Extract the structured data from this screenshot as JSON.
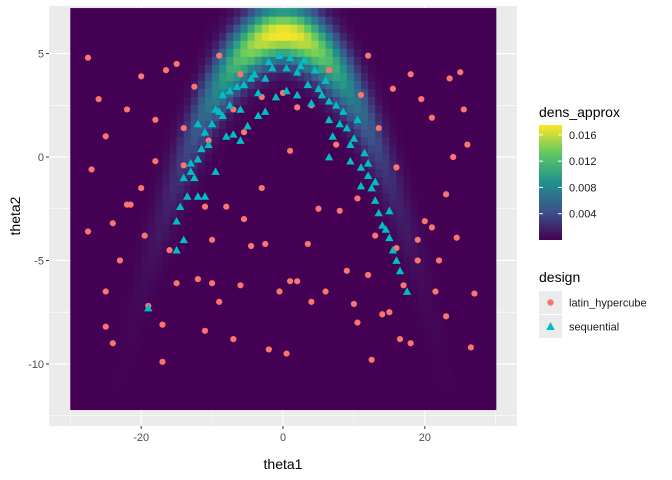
{
  "chart_data": {
    "type": "heatmap",
    "xlabel": "theta1",
    "ylabel": "theta2",
    "xlim": [
      -33,
      33
    ],
    "ylim": [
      -13.0,
      7.3
    ],
    "x_ticks": [
      -20,
      0,
      20
    ],
    "y_ticks": [
      -10,
      -5,
      0,
      5
    ],
    "grid": true,
    "heatmap": {
      "legend_title": "dens_approx",
      "x_range": [
        -30,
        30
      ],
      "y_range": [
        -12.2,
        7.2
      ],
      "max_density": 0.0175,
      "legend_breaks": [
        0.004,
        0.008,
        0.012,
        0.016
      ],
      "colorbar_labels": [
        "0.004",
        "0.008",
        "0.012",
        "0.016"
      ],
      "colors": [
        "#440154",
        "#3b528b",
        "#21908c",
        "#5dc863",
        "#fde725"
      ],
      "density_model": "banana: peak density along the curve theta2 = 3 - 0.03*(theta1^2 - 100), highest near theta1 = 0"
    },
    "legend": {
      "title": "design",
      "position": "right",
      "entries": [
        {
          "label": "latin_hypercube",
          "color": "#f8766d",
          "shape": "circle"
        },
        {
          "label": "sequential",
          "color": "#00bfc4",
          "shape": "triangle"
        }
      ]
    },
    "series": [
      {
        "name": "latin_hypercube",
        "color": "#f8766d",
        "shape": "circle",
        "points": [
          [
            -27.5,
            4.8
          ],
          [
            -26,
            2.8
          ],
          [
            -25,
            1.0
          ],
          [
            -27,
            -0.6
          ],
          [
            -27.5,
            -3.6
          ],
          [
            -24,
            -3.2
          ],
          [
            -25,
            -6.5
          ],
          [
            -23,
            -5.0
          ],
          [
            -25,
            -8.2
          ],
          [
            -24,
            -9.0
          ],
          [
            -22,
            2.3
          ],
          [
            -22,
            -2.3
          ],
          [
            -21.5,
            -2.3
          ],
          [
            -20,
            3.9
          ],
          [
            -19.5,
            -3.8
          ],
          [
            -18,
            1.8
          ],
          [
            -18,
            -0.2
          ],
          [
            -19,
            -7.2
          ],
          [
            -17,
            -9.9
          ],
          [
            -17,
            -8.1
          ],
          [
            -15,
            4.5
          ],
          [
            -14,
            1.4
          ],
          [
            -14,
            -0.4
          ],
          [
            -16,
            -4.5
          ],
          [
            -15,
            -6.1
          ],
          [
            -12,
            -5.9
          ],
          [
            -11,
            -8.4
          ],
          [
            -12.5,
            3.4
          ],
          [
            -11,
            -2.4
          ],
          [
            -10,
            -4.0
          ],
          [
            -10,
            -6.1
          ],
          [
            -9,
            4.9
          ],
          [
            -8,
            -2.4
          ],
          [
            -9,
            -7.0
          ],
          [
            -7,
            -8.8
          ],
          [
            -6,
            -6.2
          ],
          [
            -6,
            4.0
          ],
          [
            -5.5,
            1.2
          ],
          [
            -5.5,
            -3.0
          ],
          [
            -4.5,
            -4.3
          ],
          [
            -3,
            2.9
          ],
          [
            -2.5,
            -4.2
          ],
          [
            -2,
            -9.3
          ],
          [
            -0.5,
            -6.5
          ],
          [
            0,
            3.1
          ],
          [
            1,
            0.3
          ],
          [
            1,
            -6.0
          ],
          [
            2,
            -6.0
          ],
          [
            2,
            2.4
          ],
          [
            3.5,
            -4.2
          ],
          [
            4,
            -7.0
          ],
          [
            4,
            2.5
          ],
          [
            5,
            -2.5
          ],
          [
            6,
            -6.5
          ],
          [
            7.5,
            0.6
          ],
          [
            9,
            -5.5
          ],
          [
            10,
            -7.1
          ],
          [
            10.5,
            -2.0
          ],
          [
            11,
            3.0
          ],
          [
            12,
            4.9
          ],
          [
            10.5,
            -8.0
          ],
          [
            12,
            -5.7
          ],
          [
            13,
            -3.8
          ],
          [
            13.5,
            1.4
          ],
          [
            14,
            -7.6
          ],
          [
            15,
            -7.5
          ],
          [
            15.5,
            3.3
          ],
          [
            16,
            -0.5
          ],
          [
            16.5,
            -8.8
          ],
          [
            18,
            4.0
          ],
          [
            19,
            -4.0
          ],
          [
            19.5,
            2.8
          ],
          [
            19,
            -5.0
          ],
          [
            20,
            -3.1
          ],
          [
            21,
            1.9
          ],
          [
            21.5,
            -6.5
          ],
          [
            22,
            -5.0
          ],
          [
            23,
            -1.8
          ],
          [
            23,
            -7.7
          ],
          [
            23.5,
            3.8
          ],
          [
            24,
            0.0
          ],
          [
            25,
            4.1
          ],
          [
            24.5,
            -3.9
          ],
          [
            25.5,
            2.3
          ],
          [
            26,
            0.6
          ],
          [
            27,
            -6.6
          ],
          [
            26.5,
            -9.2
          ],
          [
            21,
            -3.4
          ],
          [
            18,
            -9.0
          ],
          [
            8,
            -2.6
          ],
          [
            -7,
            2.3
          ],
          [
            12.5,
            -9.8
          ],
          [
            -3,
            -1.5
          ],
          [
            -16.5,
            4.2
          ],
          [
            0.5,
            -9.5
          ],
          [
            6.5,
            4.2
          ],
          [
            16,
            -4.4
          ],
          [
            -20,
            -1.5
          ],
          [
            -10.5,
            0.8
          ],
          [
            17,
            -6.2
          ]
        ]
      },
      {
        "name": "sequential",
        "color": "#00bfc4",
        "shape": "triangle",
        "points": [
          [
            -19,
            -7.3
          ],
          [
            -15,
            -4.5
          ],
          [
            -14,
            -4.0
          ],
          [
            -15,
            -3.1
          ],
          [
            -14.5,
            -2.4
          ],
          [
            -13.5,
            -1.9
          ],
          [
            -14,
            -1.0
          ],
          [
            -13,
            -0.7
          ],
          [
            -12,
            -1.9
          ],
          [
            -11,
            -1.9
          ],
          [
            -12,
            -0.1
          ],
          [
            -11.5,
            0.4
          ],
          [
            -10.5,
            0.6
          ],
          [
            -11,
            1.2
          ],
          [
            -10,
            1.6
          ],
          [
            -12,
            1.6
          ],
          [
            -9.5,
            2.3
          ],
          [
            -8.5,
            2.0
          ],
          [
            -8.5,
            3.0
          ],
          [
            -7.5,
            2.5
          ],
          [
            -7.5,
            3.2
          ],
          [
            -6.5,
            3.4
          ],
          [
            -6.0,
            2.3
          ],
          [
            -5.5,
            3.5
          ],
          [
            -4.5,
            3.8
          ],
          [
            -4.0,
            4.0
          ],
          [
            -3.5,
            3.1
          ],
          [
            -2.5,
            3.8
          ],
          [
            -1.5,
            4.3
          ],
          [
            -1.0,
            2.9
          ],
          [
            -0.5,
            4.9
          ],
          [
            0.5,
            4.3
          ],
          [
            0.5,
            3.2
          ],
          [
            1.0,
            4.8
          ],
          [
            2.0,
            4.1
          ],
          [
            2.0,
            3.0
          ],
          [
            3.0,
            4.7
          ],
          [
            3.5,
            3.5
          ],
          [
            4.0,
            2.6
          ],
          [
            4.5,
            4.2
          ],
          [
            5.0,
            3.3
          ],
          [
            5.5,
            3.0
          ],
          [
            6.0,
            3.7
          ],
          [
            6.5,
            2.7
          ],
          [
            6.5,
            1.8
          ],
          [
            7.5,
            2.5
          ],
          [
            8.0,
            1.6
          ],
          [
            9.0,
            1.4
          ],
          [
            9.5,
            0.6
          ],
          [
            10,
            0.9
          ],
          [
            10.5,
            1.8
          ],
          [
            9.5,
            -0.2
          ],
          [
            11,
            -0.5
          ],
          [
            11.5,
            0.2
          ],
          [
            12,
            -0.9
          ],
          [
            12.5,
            -1.5
          ],
          [
            13,
            -2.1
          ],
          [
            13.5,
            -2.7
          ],
          [
            14,
            -3.3
          ],
          [
            15,
            -3.9
          ],
          [
            15.5,
            -4.5
          ],
          [
            16,
            -5.0
          ],
          [
            16.5,
            -5.5
          ],
          [
            17.5,
            -6.5
          ],
          [
            -8.0,
            1.0
          ],
          [
            -5.0,
            1.5
          ],
          [
            -2.5,
            2.2
          ],
          [
            -9.5,
            -0.7
          ],
          [
            -7,
            1.1
          ],
          [
            6.5,
            0.0
          ],
          [
            8.5,
            2.2
          ],
          [
            -3.5,
            2.0
          ],
          [
            11,
            -1.4
          ],
          [
            -13,
            -0.3
          ],
          [
            -6,
            0.8
          ],
          [
            7,
            1.0
          ],
          [
            13,
            -1.2
          ],
          [
            -9,
            2.2
          ],
          [
            -2,
            4.6
          ],
          [
            2.5,
            4.4
          ],
          [
            14.5,
            -3.5
          ],
          [
            15,
            -2.6
          ],
          [
            -12.5,
            -1.0
          ],
          [
            12,
            -0.3
          ]
        ]
      }
    ]
  }
}
